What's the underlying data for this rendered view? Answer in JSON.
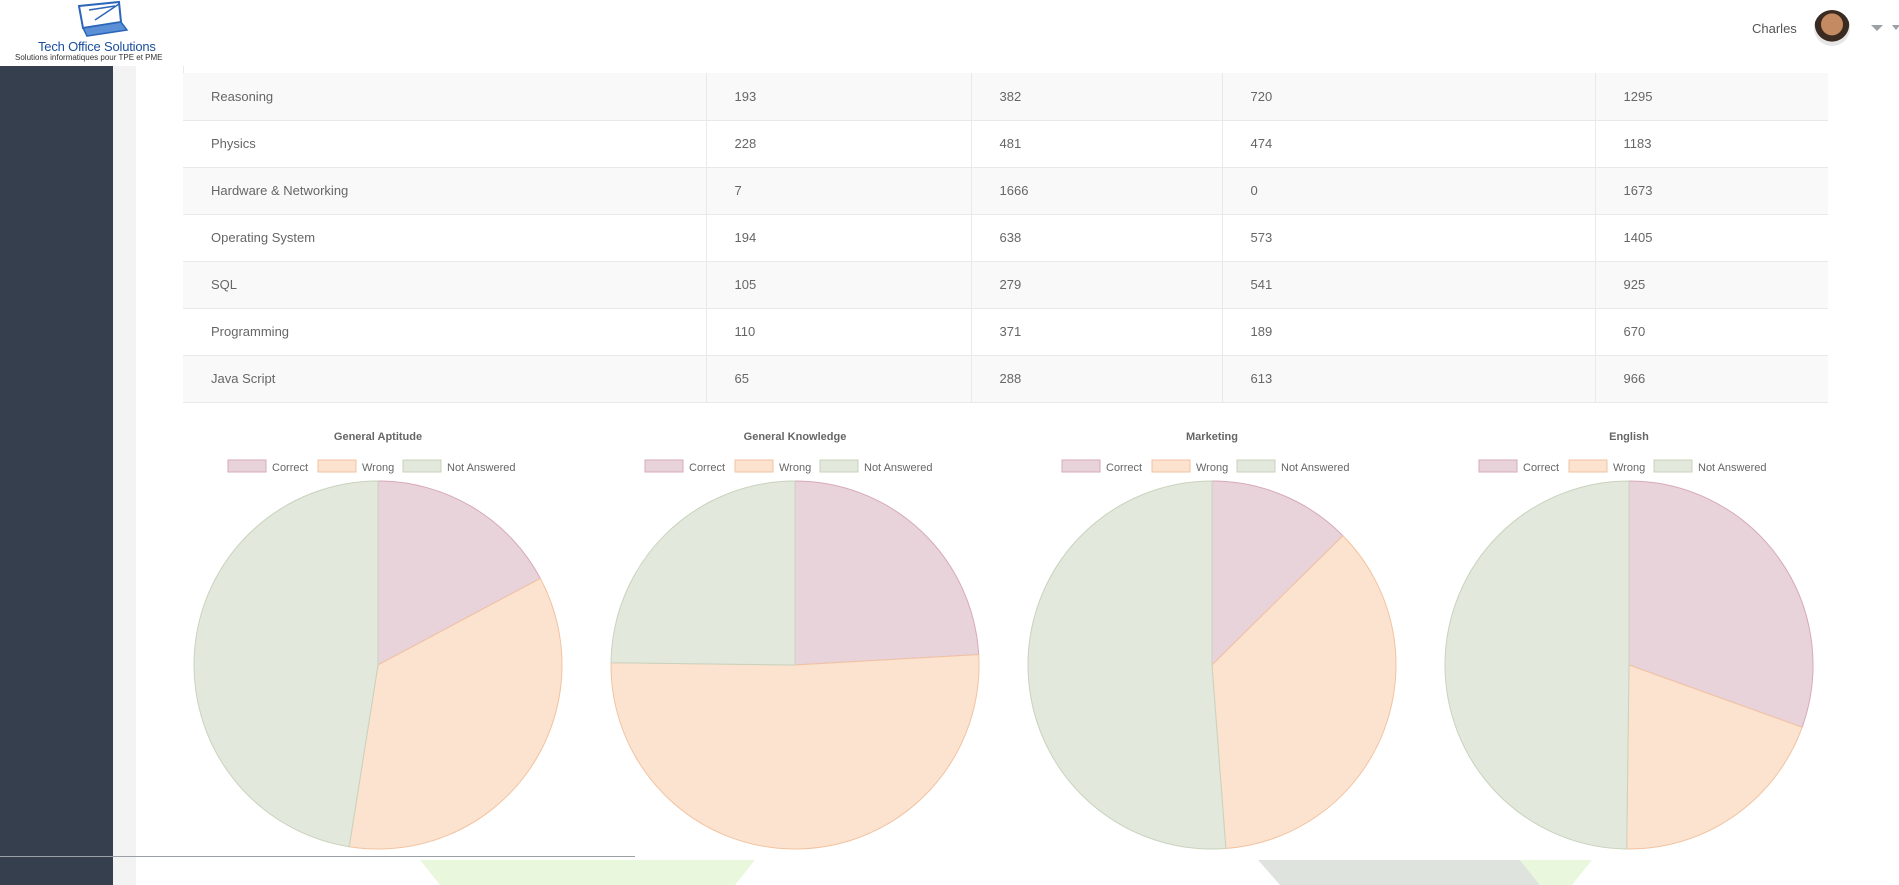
{
  "header": {
    "logo_name": "Tech Office Solutions",
    "logo_tagline": "Solutions informatiques pour TPE et PME",
    "user_name": "Charles",
    "icons": [
      "laptop-logo-icon",
      "user-avatar",
      "chevron-down-icon"
    ]
  },
  "table": {
    "rows": [
      {
        "subject": "Reasoning",
        "correct": "193",
        "wrong": "382",
        "not_answered": "720",
        "total": "1295"
      },
      {
        "subject": "Physics",
        "correct": "228",
        "wrong": "481",
        "not_answered": "474",
        "total": "1183"
      },
      {
        "subject": "Hardware & Networking",
        "correct": "7",
        "wrong": "1666",
        "not_answered": "0",
        "total": "1673"
      },
      {
        "subject": "Operating System",
        "correct": "194",
        "wrong": "638",
        "not_answered": "573",
        "total": "1405"
      },
      {
        "subject": "SQL",
        "correct": "105",
        "wrong": "279",
        "not_answered": "541",
        "total": "925"
      },
      {
        "subject": "Programming",
        "correct": "110",
        "wrong": "371",
        "not_answered": "189",
        "total": "670"
      },
      {
        "subject": "Java Script",
        "correct": "65",
        "wrong": "288",
        "not_answered": "613",
        "total": "966"
      }
    ]
  },
  "colors": {
    "correct_fill": "#e8d3db",
    "correct_stroke": "#d7a9b8",
    "wrong_fill": "#fbe3d0",
    "wrong_stroke": "#f2c3a0",
    "not_answered_fill": "#e2e8dc",
    "not_answered_stroke": "#c8d3bd"
  },
  "chart_data": [
    {
      "type": "pie",
      "title": "General Aptitude",
      "categories": [
        "Correct",
        "Wrong",
        "Not Answered"
      ],
      "values": [
        17.2,
        35.3,
        47.5
      ],
      "legend": "top"
    },
    {
      "type": "pie",
      "title": "General Knowledge",
      "categories": [
        "Correct",
        "Wrong",
        "Not Answered"
      ],
      "values": [
        24.1,
        51.1,
        24.8
      ],
      "legend": "top"
    },
    {
      "type": "pie",
      "title": "Marketing",
      "categories": [
        "Correct",
        "Wrong",
        "Not Answered"
      ],
      "values": [
        12.6,
        36.2,
        51.2
      ],
      "legend": "top"
    },
    {
      "type": "pie",
      "title": "English",
      "categories": [
        "Correct",
        "Wrong",
        "Not Answered"
      ],
      "values": [
        30.5,
        19.7,
        49.8
      ],
      "legend": "top"
    }
  ]
}
